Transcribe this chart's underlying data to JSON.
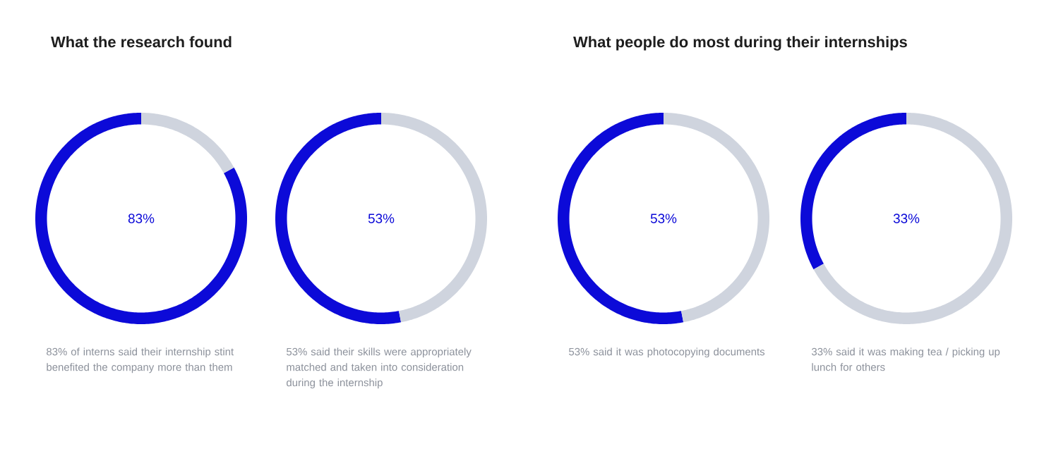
{
  "chart_data": [
    {
      "type": "donut",
      "title": "What the research found",
      "categories": [
        null,
        null
      ],
      "values": [
        83,
        17
      ],
      "colors": [
        "#0c0ad8",
        "#cfd4de"
      ],
      "annotations": [
        "83%",
        "83% of interns said their internship stint benefited the company more than them"
      ]
    },
    {
      "type": "donut",
      "categories": [
        null,
        null
      ],
      "values": [
        53,
        47
      ],
      "colors": [
        "#0c0ad8",
        "#cfd4de"
      ],
      "annotations": [
        "53%",
        "53% said their skills were appropriately matched and taken into consideration during the internship"
      ]
    },
    {
      "type": "donut",
      "title": "What people do most during their internships",
      "categories": [
        null,
        null
      ],
      "values": [
        53,
        47
      ],
      "colors": [
        "#0c0ad8",
        "#cfd4de"
      ],
      "annotations": [
        "53%",
        "53% said it was photocopying documents"
      ]
    },
    {
      "type": "donut",
      "categories": [
        null,
        null
      ],
      "values": [
        33,
        67
      ],
      "colors": [
        "#0c0ad8",
        "#cfd4de"
      ],
      "annotations": [
        "33%",
        "33% said it was making tea / picking up lunch for others"
      ]
    }
  ]
}
